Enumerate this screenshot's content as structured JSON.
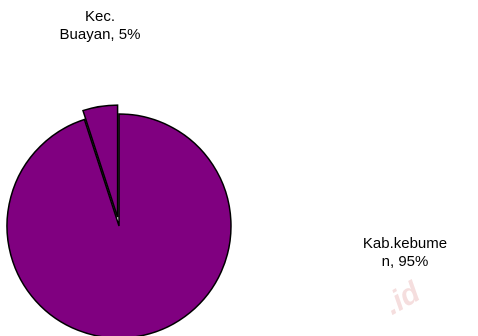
{
  "chart_data": {
    "type": "pie",
    "slices": [
      {
        "name": "Kec. Buayan",
        "value": 5,
        "label": "Kec.\nBuayan, 5%",
        "exploded": true
      },
      {
        "name": "Kab.kebumen",
        "value": 95,
        "label": "Kab.kebume\nn, 95%",
        "exploded": false
      }
    ],
    "colors": {
      "fill": "#800080",
      "stroke": "#000000"
    },
    "title": "",
    "legend": "none"
  },
  "watermark": {
    "text": ".id",
    "color": "#f5dede"
  }
}
